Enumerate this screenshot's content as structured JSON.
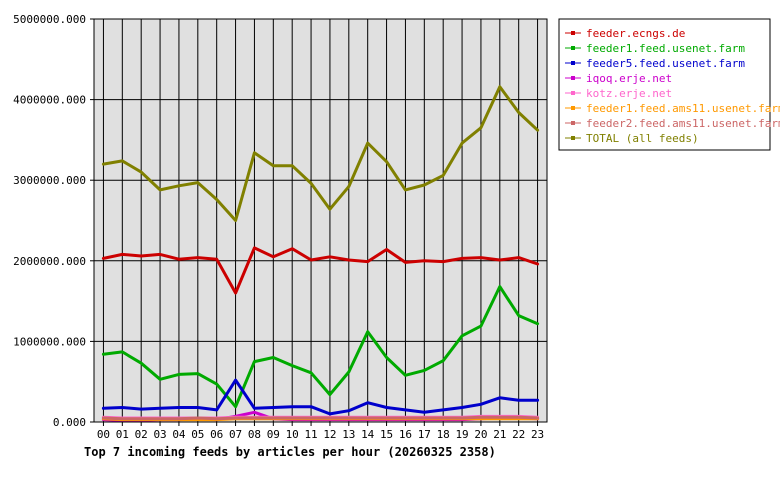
{
  "chart_data": {
    "type": "line",
    "title": "Top 7 incoming feeds by articles per hour (20260325 2358)",
    "x": [
      "00",
      "01",
      "02",
      "03",
      "04",
      "05",
      "06",
      "07",
      "08",
      "09",
      "10",
      "11",
      "12",
      "13",
      "14",
      "15",
      "16",
      "17",
      "18",
      "19",
      "20",
      "21",
      "22",
      "23"
    ],
    "ylim": [
      0,
      5000000
    ],
    "yticks": [
      "0.000",
      "1000000.000",
      "2000000.000",
      "3000000.000",
      "4000000.000",
      "5000000.000"
    ],
    "ytick_values": [
      0,
      1000000,
      2000000,
      3000000,
      4000000,
      5000000
    ],
    "grid": true,
    "legend_position": "right",
    "series": [
      {
        "name": "feeder.ecngs.de",
        "color": "#cc0000",
        "values": [
          2030000,
          2080000,
          2060000,
          2080000,
          2020000,
          2040000,
          2020000,
          1600000,
          2160000,
          2050000,
          2150000,
          2010000,
          2050000,
          2010000,
          1990000,
          2140000,
          1980000,
          2000000,
          1990000,
          2030000,
          2040000,
          2010000,
          2040000,
          1960000
        ]
      },
      {
        "name": "feeder1.feed.usenet.farm",
        "color": "#00aa00",
        "values": [
          840000,
          870000,
          730000,
          530000,
          590000,
          600000,
          470000,
          190000,
          750000,
          800000,
          700000,
          610000,
          340000,
          620000,
          1120000,
          800000,
          580000,
          640000,
          760000,
          1070000,
          1190000,
          1680000,
          1320000,
          1220000
        ]
      },
      {
        "name": "feeder5.feed.usenet.farm",
        "color": "#0000cc",
        "values": [
          170000,
          180000,
          160000,
          170000,
          180000,
          180000,
          150000,
          520000,
          170000,
          180000,
          190000,
          190000,
          100000,
          140000,
          240000,
          180000,
          150000,
          120000,
          150000,
          180000,
          220000,
          300000,
          270000,
          270000
        ]
      },
      {
        "name": "iqoq.erje.net",
        "color": "#cc00cc",
        "values": [
          30000,
          20000,
          20000,
          30000,
          30000,
          40000,
          30000,
          70000,
          120000,
          40000,
          30000,
          30000,
          30000,
          30000,
          30000,
          30000,
          30000,
          30000,
          30000,
          30000,
          40000,
          50000,
          50000,
          40000
        ]
      },
      {
        "name": "kotz.erje.net",
        "color": "#ff66cc",
        "values": [
          60000,
          50000,
          50000,
          50000,
          50000,
          50000,
          50000,
          60000,
          60000,
          60000,
          60000,
          60000,
          60000,
          60000,
          60000,
          60000,
          60000,
          60000,
          60000,
          60000,
          70000,
          70000,
          70000,
          60000
        ]
      },
      {
        "name": "feeder1.feed.ams11.usenet.farm",
        "color": "#ff9900",
        "values": [
          40000,
          30000,
          30000,
          30000,
          30000,
          30000,
          30000,
          40000,
          40000,
          40000,
          40000,
          40000,
          40000,
          40000,
          40000,
          40000,
          40000,
          40000,
          40000,
          40000,
          40000,
          40000,
          40000,
          40000
        ]
      },
      {
        "name": "feeder2.feed.ams11.usenet.farm",
        "color": "#cc6666",
        "values": [
          50000,
          40000,
          40000,
          40000,
          40000,
          50000,
          40000,
          50000,
          50000,
          50000,
          50000,
          50000,
          50000,
          50000,
          50000,
          50000,
          50000,
          50000,
          50000,
          50000,
          60000,
          60000,
          60000,
          50000
        ]
      },
      {
        "name": "TOTAL (all feeds)",
        "color": "#808000",
        "values": [
          3200000,
          3240000,
          3100000,
          2880000,
          2930000,
          2970000,
          2760000,
          2500000,
          3340000,
          3180000,
          3180000,
          2960000,
          2640000,
          2920000,
          3460000,
          3230000,
          2880000,
          2940000,
          3060000,
          3460000,
          3650000,
          4160000,
          3840000,
          3620000
        ]
      }
    ]
  }
}
